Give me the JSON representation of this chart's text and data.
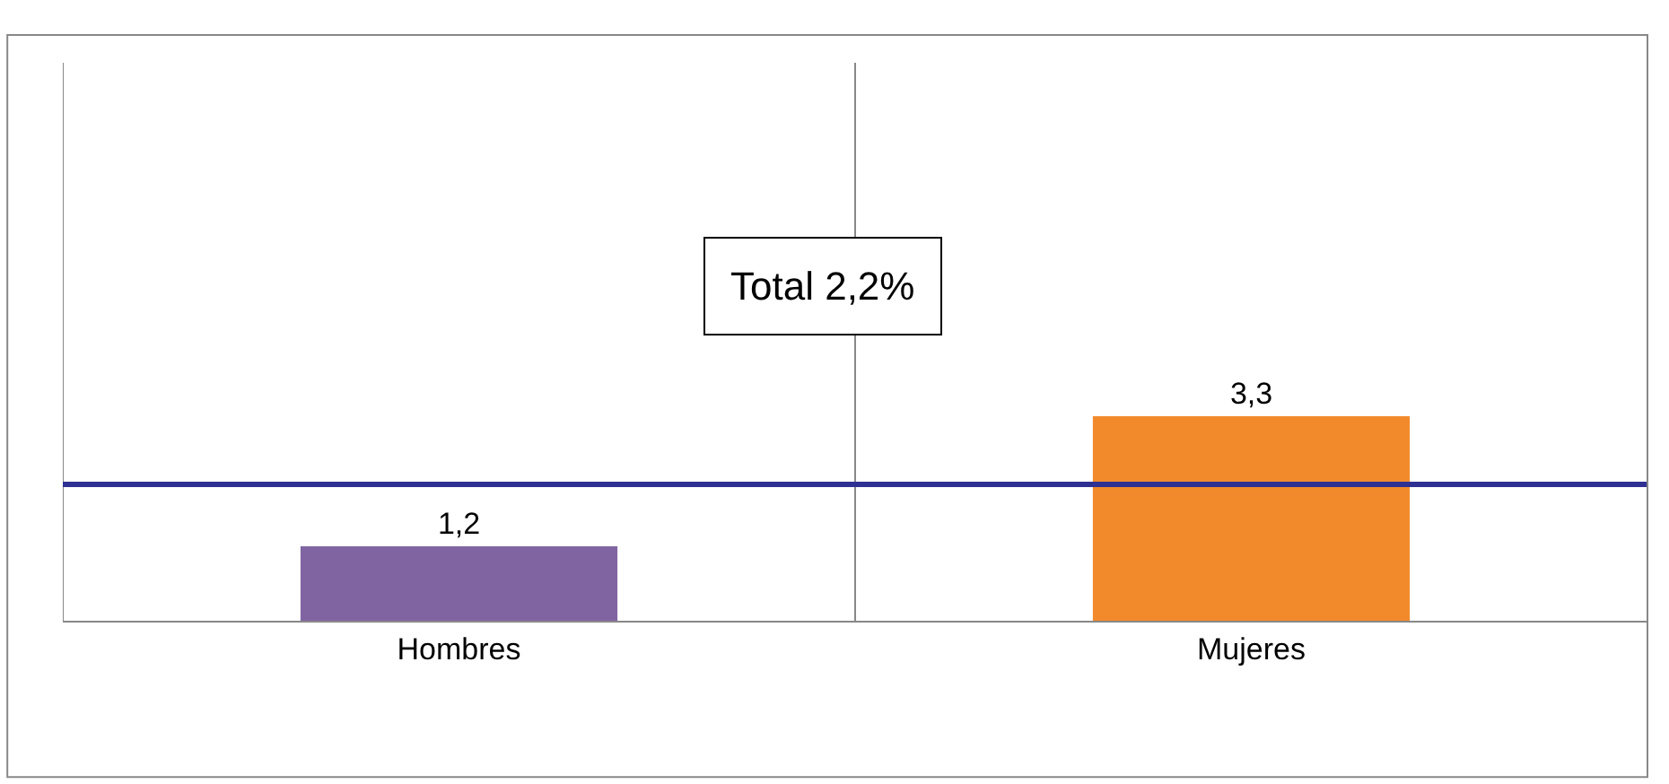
{
  "chart_data": {
    "type": "bar",
    "categories": [
      "Hombres",
      "Mujeres"
    ],
    "values": [
      1.2,
      3.3
    ],
    "colors": [
      "#8064a2",
      "#f28a2c"
    ],
    "value_labels": [
      "1,2",
      "3,3"
    ],
    "ylim": [
      0,
      9
    ],
    "tick_labels": "x",
    "grid": "x",
    "legend": false,
    "annotations": [
      "Total 2,2%"
    ],
    "ref_lines": [
      {
        "axis": "y",
        "value": 2.2,
        "color": "#2e3192"
      }
    ]
  }
}
